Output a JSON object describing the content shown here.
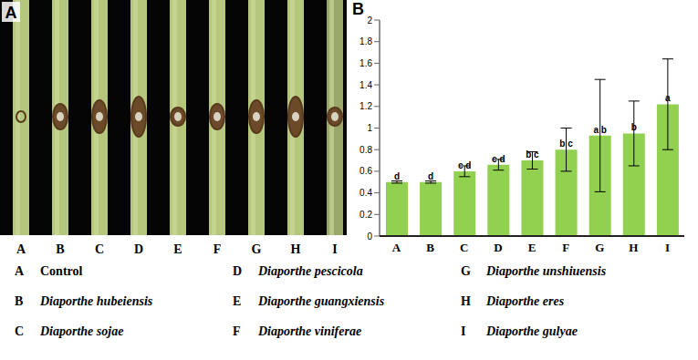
{
  "photo": {
    "title": "A",
    "stem_labels": [
      "A",
      "B",
      "C",
      "D",
      "E",
      "F",
      "G",
      "H",
      "I"
    ]
  },
  "chart_data": {
    "type": "bar",
    "title": "B",
    "categories": [
      "A",
      "B",
      "C",
      "D",
      "E",
      "F",
      "G",
      "H",
      "I"
    ],
    "values": [
      0.5,
      0.5,
      0.6,
      0.66,
      0.7,
      0.8,
      0.93,
      0.95,
      1.22
    ],
    "errors": [
      0.01,
      0.01,
      0.05,
      0.05,
      0.08,
      0.2,
      0.52,
      0.3,
      0.42
    ],
    "annotations": [
      "d",
      "d",
      "c d",
      "c d",
      "b c",
      "b c",
      "a b",
      "b",
      "a"
    ],
    "color": "#92d050",
    "ylim": [
      0,
      2
    ],
    "yticks": [
      0,
      0.2,
      0.4,
      0.6,
      0.8,
      1,
      1.2,
      1.4,
      1.6,
      1.8,
      2
    ],
    "grid": false
  },
  "legend": [
    {
      "key": "A",
      "name": "Control"
    },
    {
      "key": "B",
      "name": "Diaporthe hubeiensis"
    },
    {
      "key": "C",
      "name": "Diaporthe sojae"
    },
    {
      "key": "D",
      "name": "Diaporthe pescicola"
    },
    {
      "key": "E",
      "name": "Diaporthe guangxiensis"
    },
    {
      "key": "F",
      "name": "Diaporthe viniferae"
    },
    {
      "key": "G",
      "name": "Diaporthe unshiuensis"
    },
    {
      "key": "H",
      "name": "Diaporthe eres"
    },
    {
      "key": "I",
      "name": "Diaporthe gulyae"
    }
  ]
}
